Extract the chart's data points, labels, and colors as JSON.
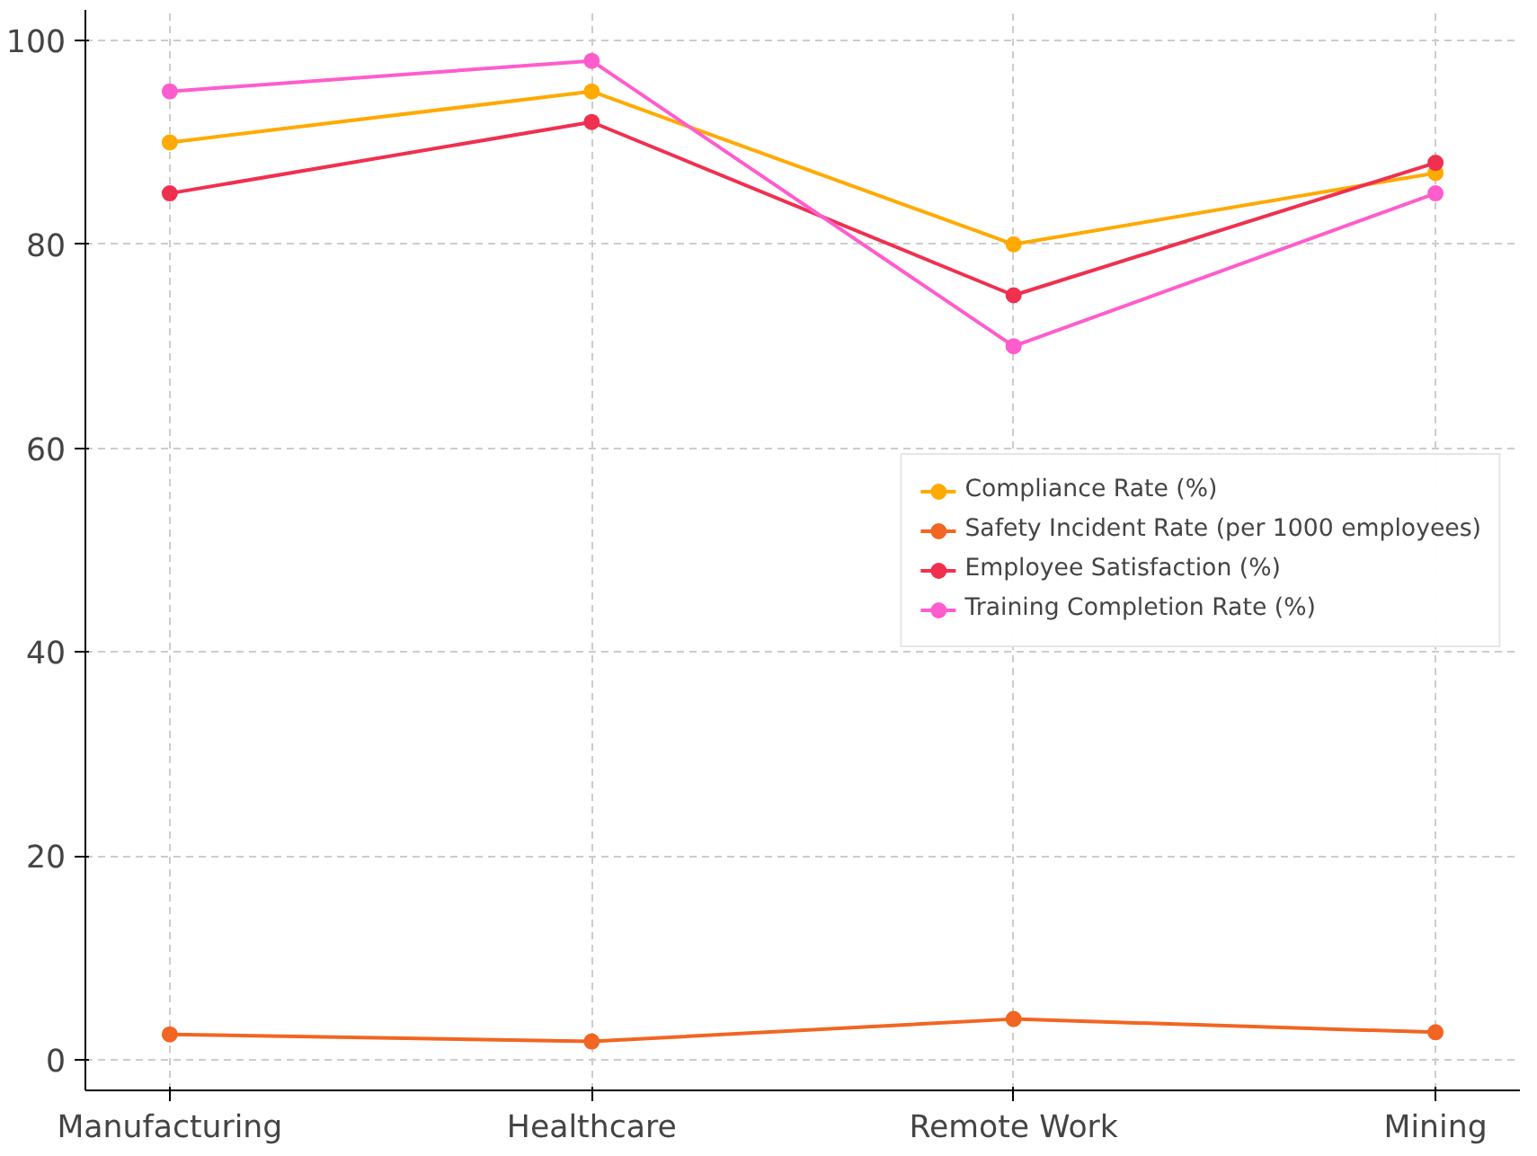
{
  "chart_data": {
    "type": "line",
    "categories": [
      "Manufacturing",
      "Healthcare",
      "Remote Work",
      "Mining"
    ],
    "series": [
      {
        "name": "Compliance Rate (%)",
        "color": "#ffaa00",
        "values": [
          90,
          95,
          80,
          87
        ]
      },
      {
        "name": "Safety Incident Rate (per 1000 employees)",
        "color": "#f26522",
        "values": [
          2.5,
          1.8,
          4.0,
          2.7
        ]
      },
      {
        "name": "Employee Satisfaction (%)",
        "color": "#f0304f",
        "values": [
          85,
          92,
          75,
          88
        ]
      },
      {
        "name": "Training Completion Rate (%)",
        "color": "#ff5ccd",
        "values": [
          95,
          98,
          70,
          85
        ]
      }
    ],
    "ylim": [
      -3,
      103
    ],
    "yticks": [
      0,
      20,
      40,
      60,
      80,
      100
    ],
    "grid": true,
    "legend": "right",
    "marker": "circle",
    "line_style": "solid"
  }
}
